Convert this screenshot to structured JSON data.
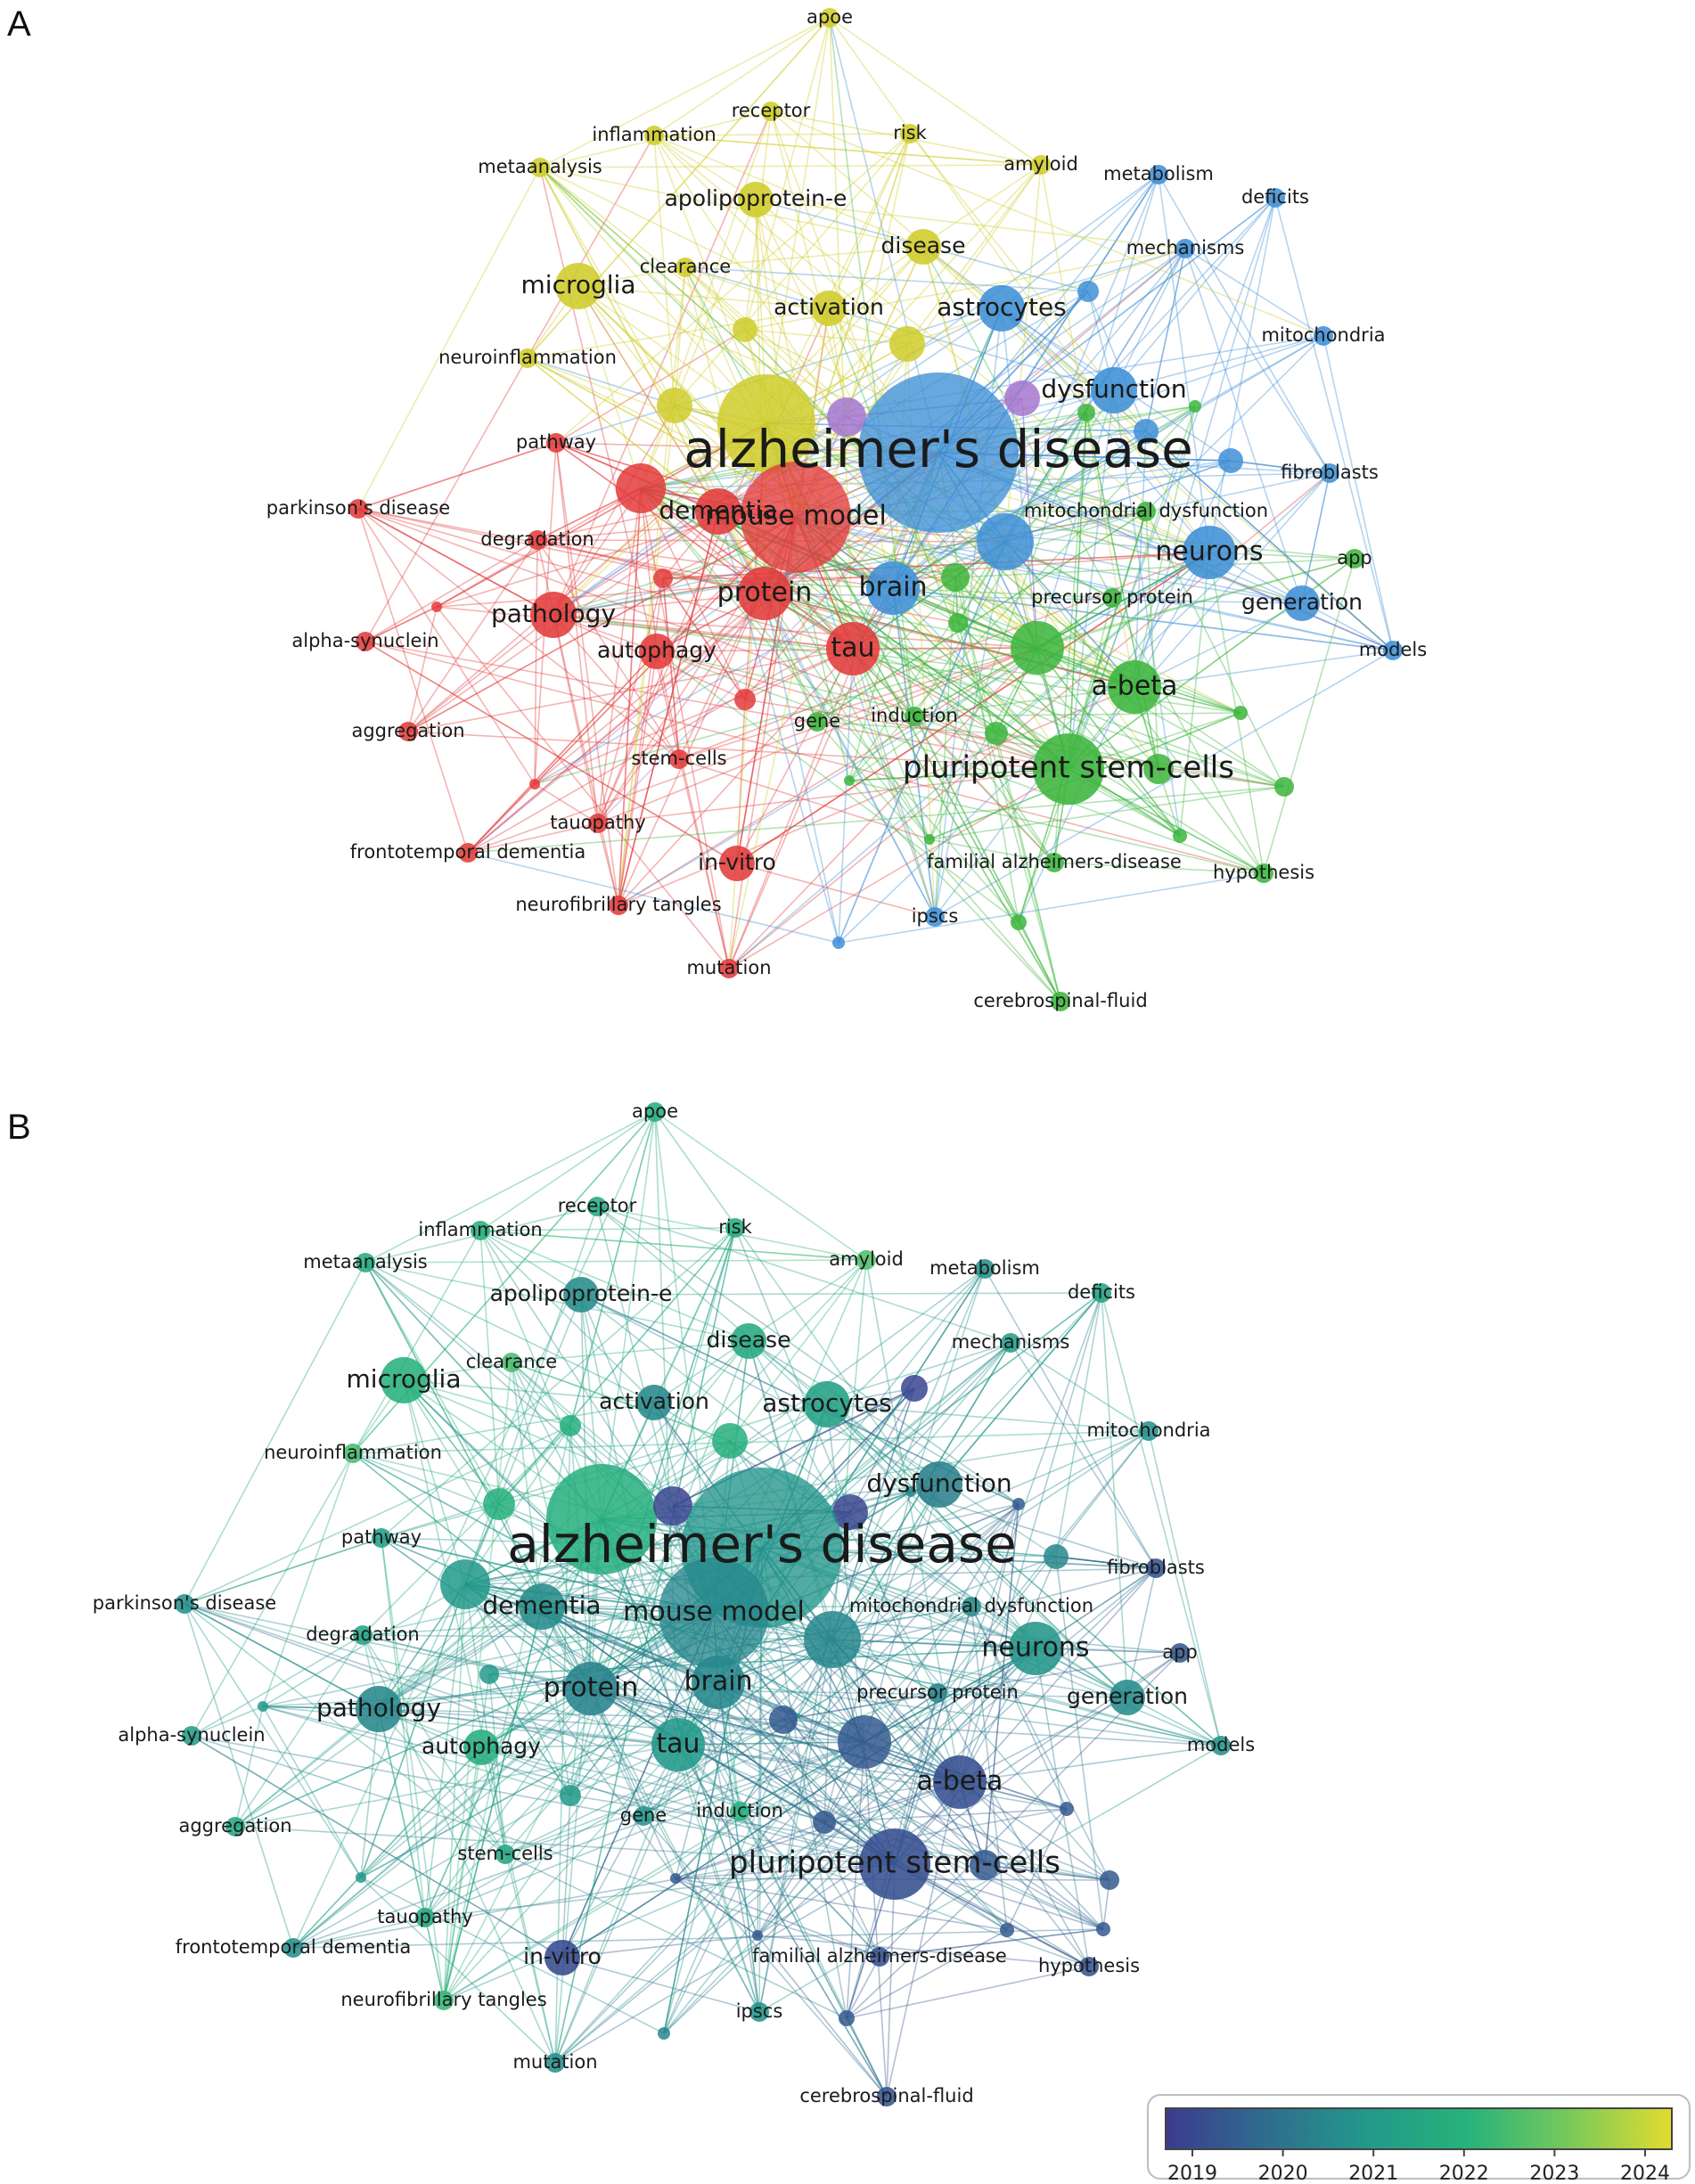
{
  "figure": {
    "panels": [
      {
        "letter": "A",
        "coloring": "cluster"
      },
      {
        "letter": "B",
        "coloring": "average year"
      }
    ],
    "cluster_colors": {
      "red": "#e33b3b",
      "green": "#3cb53c",
      "blue": "#3f8fd6",
      "yellow": "#cfcc2a",
      "purple": "#a577cf"
    },
    "legend": {
      "ticks": [
        "2019",
        "2020",
        "2021",
        "2022",
        "2023",
        "2024"
      ],
      "gradient": [
        "#3b3b8f",
        "#2f6d8e",
        "#22998a",
        "#27b37a",
        "#7ac95a",
        "#e2dc2e"
      ]
    }
  },
  "keywords": [
    {
      "label": "alzheimer's disease",
      "cluster": "blue",
      "year": 2020.9,
      "size": 10
    },
    {
      "label": "mouse model",
      "cluster": "red",
      "year": 2020.6,
      "size": 7
    },
    {
      "label": "dementia",
      "cluster": "red",
      "year": 2020.7,
      "size": 4
    },
    {
      "label": "protein",
      "cluster": "red",
      "year": 2020.5,
      "size": 5
    },
    {
      "label": "tau",
      "cluster": "red",
      "year": 2021.0,
      "size": 5
    },
    {
      "label": "pathology",
      "cluster": "red",
      "year": 2020.6,
      "size": 4
    },
    {
      "label": "autophagy",
      "cluster": "red",
      "year": 2021.8,
      "size": 3
    },
    {
      "label": "pathway",
      "cluster": "red",
      "year": 2021.2,
      "size": 2
    },
    {
      "label": "parkinson's disease",
      "cluster": "red",
      "year": 2020.8,
      "size": 2
    },
    {
      "label": "degradation",
      "cluster": "red",
      "year": 2021.4,
      "size": 2
    },
    {
      "label": "alpha-synuclein",
      "cluster": "red",
      "year": 2021.2,
      "size": 2
    },
    {
      "label": "aggregation",
      "cluster": "red",
      "year": 2021.5,
      "size": 2
    },
    {
      "label": "stem-cells",
      "cluster": "red",
      "year": 2021.5,
      "size": 2
    },
    {
      "label": "tauopathy",
      "cluster": "red",
      "year": 2021.6,
      "size": 2
    },
    {
      "label": "frontotemporal dementia",
      "cluster": "red",
      "year": 2020.8,
      "size": 2
    },
    {
      "label": "neurofibrillary tangles",
      "cluster": "red",
      "year": 2022.2,
      "size": 2
    },
    {
      "label": "in-vitro",
      "cluster": "red",
      "year": 2019.3,
      "size": 3
    },
    {
      "label": "mutation",
      "cluster": "red",
      "year": 2020.8,
      "size": 2
    },
    {
      "label": "brain",
      "cluster": "blue",
      "year": 2020.6,
      "size": 5
    },
    {
      "label": "astrocytes",
      "cluster": "blue",
      "year": 2021.3,
      "size": 4
    },
    {
      "label": "dysfunction",
      "cluster": "blue",
      "year": 2020.4,
      "size": 4
    },
    {
      "label": "neurons",
      "cluster": "blue",
      "year": 2020.9,
      "size": 5
    },
    {
      "label": "generation",
      "cluster": "blue",
      "year": 2020.7,
      "size": 3
    },
    {
      "label": "metabolism",
      "cluster": "blue",
      "year": 2020.8,
      "size": 2
    },
    {
      "label": "deficits",
      "cluster": "blue",
      "year": 2021.4,
      "size": 2
    },
    {
      "label": "mechanisms",
      "cluster": "blue",
      "year": 2021.2,
      "size": 2
    },
    {
      "label": "mitochondria",
      "cluster": "blue",
      "year": 2020.8,
      "size": 2
    },
    {
      "label": "fibroblasts",
      "cluster": "blue",
      "year": 2019.5,
      "size": 2
    },
    {
      "label": "models",
      "cluster": "blue",
      "year": 2020.9,
      "size": 2
    },
    {
      "label": "ipscs",
      "cluster": "blue",
      "year": 2020.9,
      "size": 2
    },
    {
      "label": "apoe",
      "cluster": "yellow",
      "year": 2021.8,
      "size": 2
    },
    {
      "label": "receptor",
      "cluster": "yellow",
      "year": 2021.6,
      "size": 2
    },
    {
      "label": "inflammation",
      "cluster": "yellow",
      "year": 2021.9,
      "size": 2
    },
    {
      "label": "risk",
      "cluster": "yellow",
      "year": 2021.8,
      "size": 2
    },
    {
      "label": "metaanalysis",
      "cluster": "yellow",
      "year": 2021.7,
      "size": 2
    },
    {
      "label": "amyloid",
      "cluster": "yellow",
      "year": 2022.5,
      "size": 2
    },
    {
      "label": "apolipoprotein-e",
      "cluster": "yellow",
      "year": 2020.7,
      "size": 3
    },
    {
      "label": "disease",
      "cluster": "yellow",
      "year": 2021.6,
      "size": 3
    },
    {
      "label": "clearance",
      "cluster": "yellow",
      "year": 2022.4,
      "size": 2
    },
    {
      "label": "microglia",
      "cluster": "yellow",
      "year": 2021.9,
      "size": 4
    },
    {
      "label": "activation",
      "cluster": "yellow",
      "year": 2020.6,
      "size": 3
    },
    {
      "label": "neuroinflammation",
      "cluster": "yellow",
      "year": 2022.4,
      "size": 2
    },
    {
      "label": "mitochondrial dysfunction",
      "cluster": "green",
      "year": 2020.7,
      "size": 2
    },
    {
      "label": "app",
      "cluster": "green",
      "year": 2019.6,
      "size": 2
    },
    {
      "label": "precursor protein",
      "cluster": "green",
      "year": 2020.6,
      "size": 2
    },
    {
      "label": "a-beta",
      "cluster": "green",
      "year": 2019.4,
      "size": 5
    },
    {
      "label": "gene",
      "cluster": "green",
      "year": 2020.9,
      "size": 2
    },
    {
      "label": "induction",
      "cluster": "green",
      "year": 2021.9,
      "size": 2
    },
    {
      "label": "pluripotent stem-cells",
      "cluster": "green",
      "year": 2019.4,
      "size": 6
    },
    {
      "label": "familial alzheimers-disease",
      "cluster": "green",
      "year": 2019.4,
      "size": 2
    },
    {
      "label": "hypothesis",
      "cluster": "green",
      "year": 2019.5,
      "size": 2
    },
    {
      "label": "cerebrospinal-fluid",
      "cluster": "green",
      "year": 2019.5,
      "size": 2
    }
  ]
}
